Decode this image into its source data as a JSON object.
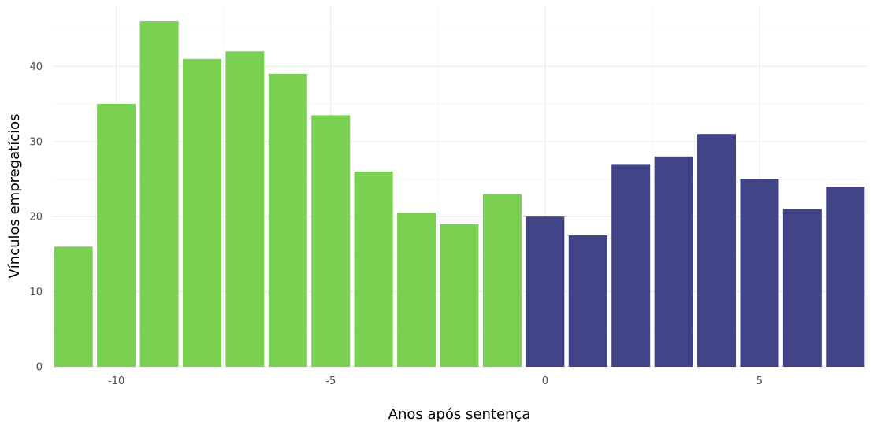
{
  "chart_data": {
    "type": "bar",
    "title": "",
    "xlabel": "Anos após sentença",
    "ylabel": "Vínculos empregatícios",
    "x": [
      -11,
      -10,
      -9,
      -8,
      -7,
      -6,
      -5,
      -4,
      -3,
      -2,
      -1,
      0,
      1,
      2,
      3,
      4,
      5,
      6,
      7
    ],
    "values": [
      16,
      35,
      46,
      41,
      42,
      39,
      33.5,
      26,
      20.5,
      19,
      23,
      20,
      17.5,
      27,
      28,
      31,
      25,
      21,
      24
    ],
    "period": [
      "before",
      "before",
      "before",
      "before",
      "before",
      "before",
      "before",
      "before",
      "before",
      "before",
      "before",
      "after",
      "after",
      "after",
      "after",
      "after",
      "after",
      "after",
      "after"
    ],
    "colors": {
      "before": "#7ad151",
      "after": "#414487"
    },
    "xlim": [
      -11.5,
      7.5
    ],
    "ylim": [
      0,
      48
    ],
    "xticks": [
      -10,
      -5,
      0,
      5
    ],
    "xtick_labels": [
      "-10",
      "-5",
      "0",
      "5"
    ],
    "yticks": [
      0,
      10,
      20,
      30,
      40
    ],
    "ytick_labels": [
      "0",
      "10",
      "20",
      "30",
      "40"
    ],
    "grid": true,
    "legend": "none"
  }
}
